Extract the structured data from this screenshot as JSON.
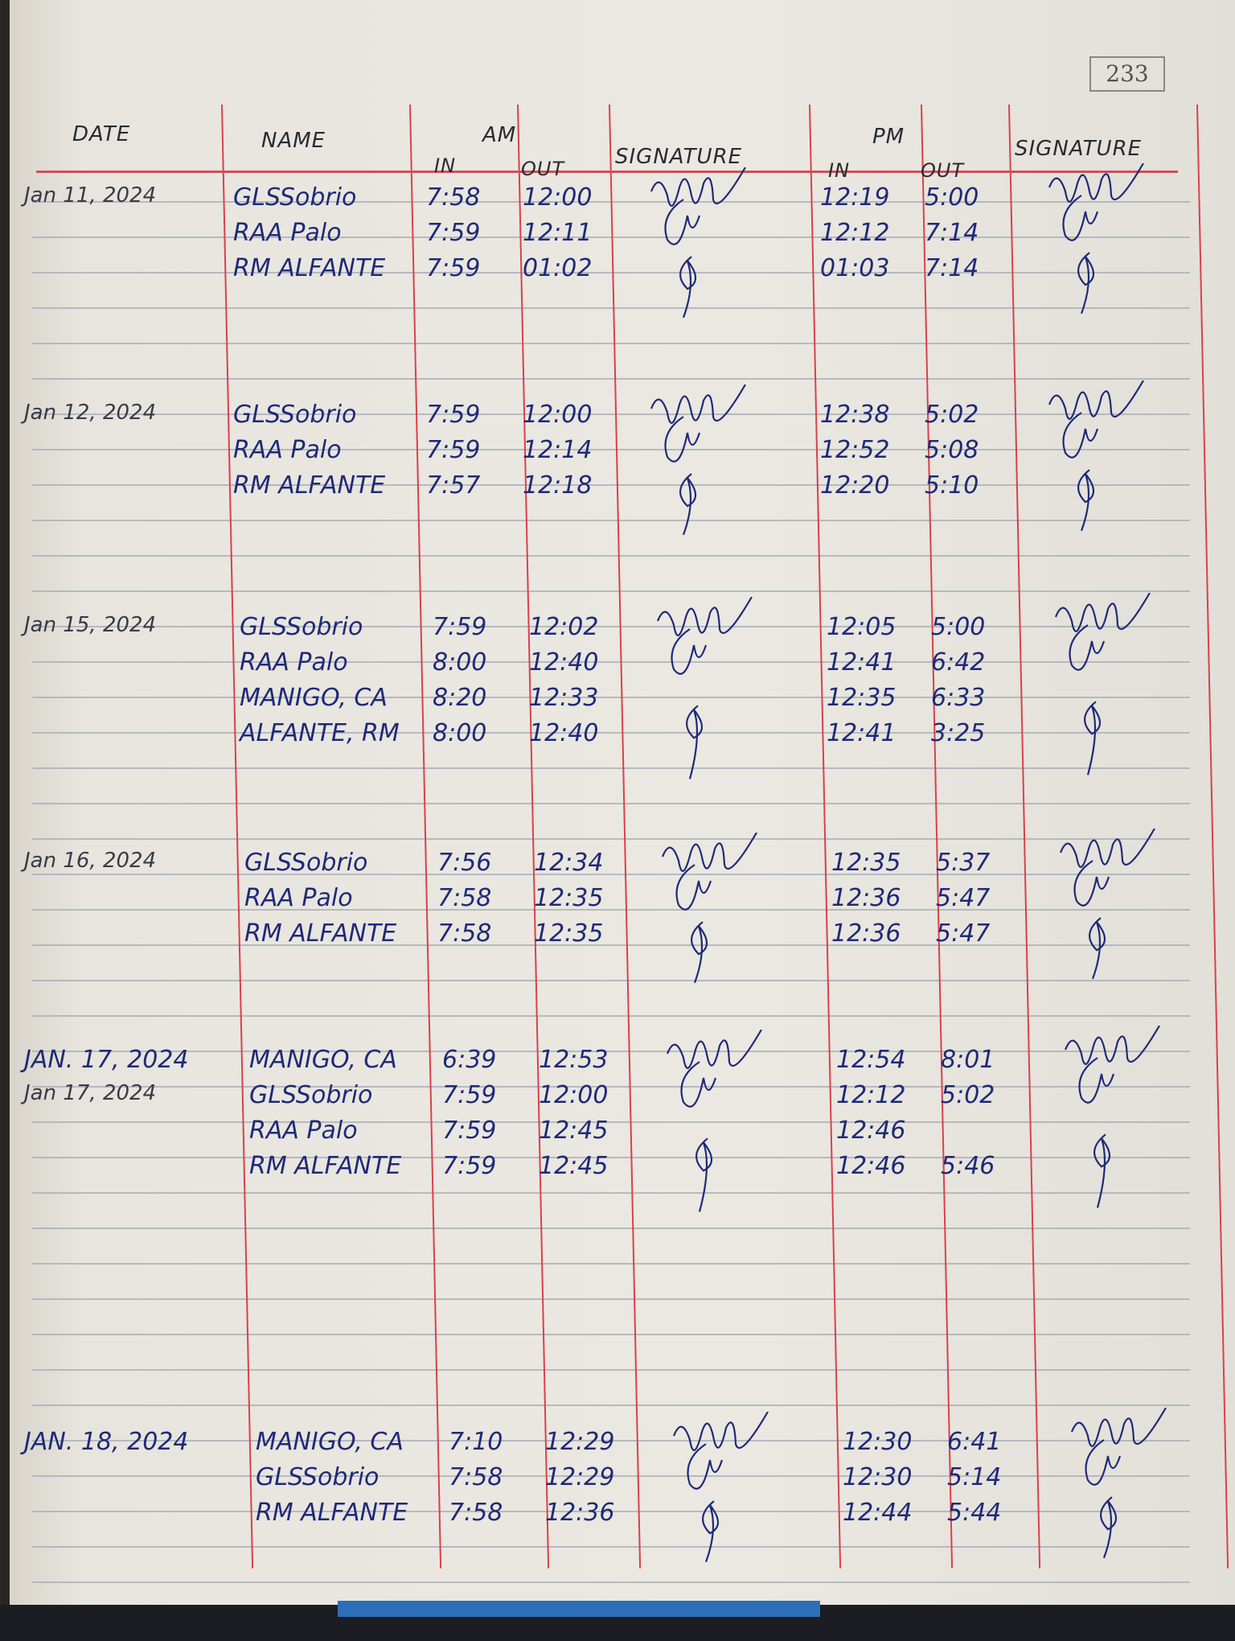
{
  "page_number": "233",
  "header": {
    "date": "DATE",
    "name": "NAME",
    "am": "AM",
    "am_in": "IN",
    "am_out": "OUT",
    "signature_am": "SIGNATURE",
    "pm": "PM",
    "pm_in": "IN",
    "pm_out": "OUT",
    "signature_pm": "SIGNATURE"
  },
  "colors": {
    "ink": "#1e2a78",
    "red_rule": "#d8414c",
    "paper": "#ebe8e1"
  },
  "groups": [
    {
      "date": "Jan 11, 2024",
      "entries": [
        {
          "name": "GLSSobrio",
          "am_in": "7:58",
          "am_out": "12:00",
          "pm_in": "12:19",
          "pm_out": "5:00"
        },
        {
          "name": "RAA Palo",
          "am_in": "7:59",
          "am_out": "12:11",
          "pm_in": "12:12",
          "pm_out": "7:14"
        },
        {
          "name": "RM ALFANTE",
          "am_in": "7:59",
          "am_out": "01:02",
          "pm_in": "01:03",
          "pm_out": "7:14"
        }
      ]
    },
    {
      "date": "Jan 12, 2024",
      "entries": [
        {
          "name": "GLSSobrio",
          "am_in": "7:59",
          "am_out": "12:00",
          "pm_in": "12:38",
          "pm_out": "5:02"
        },
        {
          "name": "RAA Palo",
          "am_in": "7:59",
          "am_out": "12:14",
          "pm_in": "12:52",
          "pm_out": "5:08"
        },
        {
          "name": "RM ALFANTE",
          "am_in": "7:57",
          "am_out": "12:18",
          "pm_in": "12:20",
          "pm_out": "5:10"
        }
      ]
    },
    {
      "date": "Jan 15, 2024",
      "entries": [
        {
          "name": "GLSSobrio",
          "am_in": "7:59",
          "am_out": "12:02",
          "pm_in": "12:05",
          "pm_out": "5:00"
        },
        {
          "name": "RAA Palo",
          "am_in": "8:00",
          "am_out": "12:40",
          "pm_in": "12:41",
          "pm_out": "6:42"
        },
        {
          "name": "MANIGO, CA",
          "am_in": "8:20",
          "am_out": "12:33",
          "pm_in": "12:35",
          "pm_out": "6:33"
        },
        {
          "name": "ALFANTE, RM",
          "am_in": "8:00",
          "am_out": "12:40",
          "pm_in": "12:41",
          "pm_out": "3:25"
        }
      ]
    },
    {
      "date": "Jan 16, 2024",
      "entries": [
        {
          "name": "GLSSobrio",
          "am_in": "7:56",
          "am_out": "12:34",
          "pm_in": "12:35",
          "pm_out": "5:37"
        },
        {
          "name": "RAA Palo",
          "am_in": "7:58",
          "am_out": "12:35",
          "pm_in": "12:36",
          "pm_out": "5:47"
        },
        {
          "name": "RM ALFANTE",
          "am_in": "7:58",
          "am_out": "12:35",
          "pm_in": "12:36",
          "pm_out": "5:47"
        }
      ]
    },
    {
      "date": "JAN. 17, 2024",
      "entries": [
        {
          "name": "MANIGO, CA",
          "am_in": "6:39",
          "am_out": "12:53",
          "pm_in": "12:54",
          "pm_out": "8:01"
        },
        {
          "date": "Jan 17, 2024",
          "name": "GLSSobrio",
          "am_in": "7:59",
          "am_out": "12:00",
          "pm_in": "12:12",
          "pm_out": "5:02"
        },
        {
          "name": "RAA Palo",
          "am_in": "7:59",
          "am_out": "12:45",
          "pm_in": "12:46",
          "pm_out": ""
        },
        {
          "name": "RM ALFANTE",
          "am_in": "7:59",
          "am_out": "12:45",
          "pm_in": "12:46",
          "pm_out": "5:46"
        }
      ]
    },
    {
      "date": "JAN. 18, 2024",
      "entries": [
        {
          "name": "MANIGO, CA",
          "am_in": "7:10",
          "am_out": "12:29",
          "pm_in": "12:30",
          "pm_out": "6:41"
        },
        {
          "name": "GLSSobrio",
          "am_in": "7:58",
          "am_out": "12:29",
          "pm_in": "12:30",
          "pm_out": "5:14"
        },
        {
          "name": "RM ALFANTE",
          "am_in": "7:58",
          "am_out": "12:36",
          "pm_in": "12:44",
          "pm_out": "5:44"
        }
      ]
    }
  ]
}
